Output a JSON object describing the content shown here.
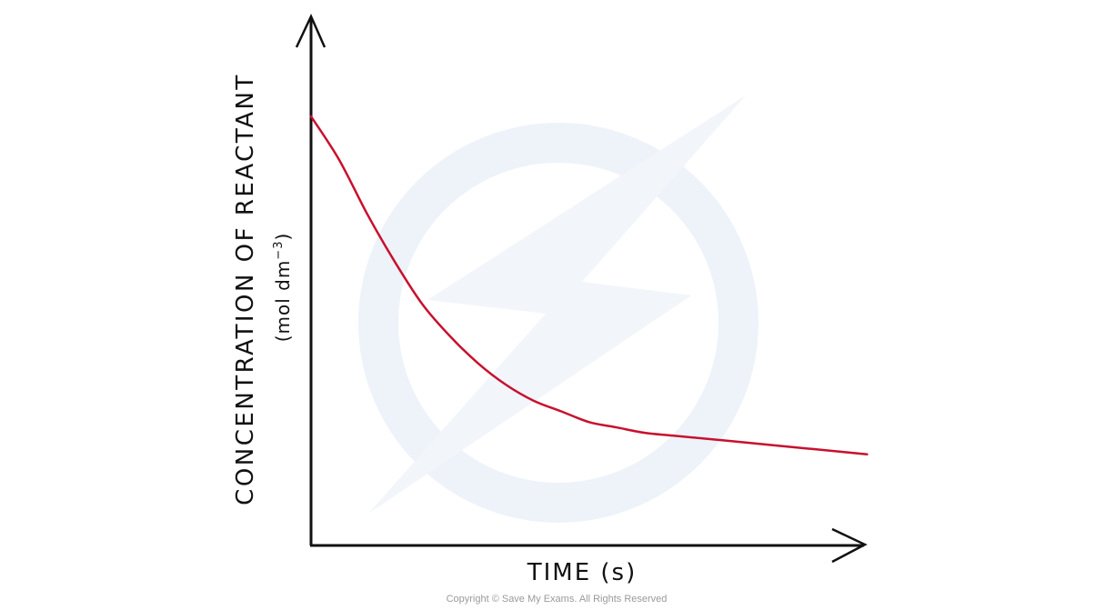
{
  "chart_data": {
    "type": "line",
    "xlabel": "TIME (s)",
    "ylabel": "CONCENTRATION OF REACTANT",
    "ylabel_units": "(mol dm",
    "ylabel_units_sup": "−3",
    "ylabel_units_close": ")",
    "grid": false,
    "tick_labels": false,
    "series": [
      {
        "color": "#c8102e",
        "x": [
          0,
          0.05,
          0.1,
          0.15,
          0.2,
          0.25,
          0.3,
          0.35,
          0.4,
          0.45,
          0.5,
          0.55,
          0.6,
          0.65,
          0.7,
          0.75,
          0.8,
          0.85,
          0.9,
          0.95,
          1.0
        ],
        "y": [
          0.8,
          0.72,
          0.62,
          0.53,
          0.45,
          0.39,
          0.34,
          0.3,
          0.27,
          0.25,
          0.23,
          0.22,
          0.21,
          0.205,
          0.2,
          0.195,
          0.19,
          0.185,
          0.18,
          0.175,
          0.17
        ]
      }
    ],
    "xlim": [
      0,
      1.05
    ],
    "ylim": [
      0,
      1.0
    ]
  },
  "watermark": {
    "icon": "lightning-bolt-icon",
    "color": "#eef3fa"
  },
  "footer": {
    "copyright": "Copyright © Save My Exams. All Rights Reserved"
  },
  "colors": {
    "axis": "#111111",
    "curve": "#c8102e"
  }
}
